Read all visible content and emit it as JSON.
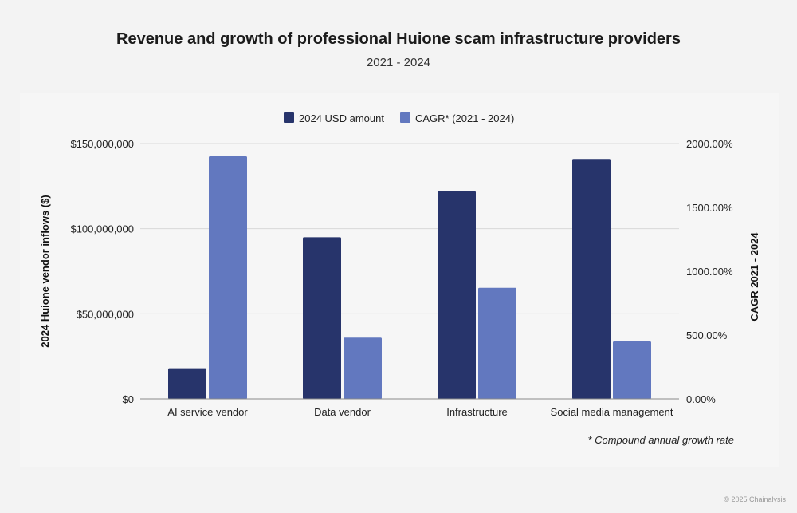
{
  "title": "Revenue and growth of professional Huione scam infrastructure providers",
  "subtitle": "2021 - 2024",
  "copyright": "© 2025 Chainalysis",
  "footnote": "* Compound annual growth rate",
  "colors": {
    "usd": "#27346b",
    "cagr": "#6278bf",
    "grid": "#d9d9d9",
    "axis": "#8a8a8a",
    "text": "#222222"
  },
  "chart_data": {
    "type": "bar",
    "categories": [
      "AI service vendor",
      "Data vendor",
      "Infrastructure",
      "Social media management"
    ],
    "series": [
      {
        "name": "2024 USD amount",
        "axis": "left",
        "values": [
          18000000,
          95000000,
          122000000,
          141000000
        ]
      },
      {
        "name": "CAGR* (2021 - 2024)",
        "axis": "right",
        "values": [
          1900,
          480,
          870,
          450
        ]
      }
    ],
    "ylabel_left": "2024 Huione vendor inflows ($)",
    "ylabel_right": "CAGR 2021 - 2024",
    "ylim_left": [
      0,
      150000000
    ],
    "ylim_right": [
      0,
      2000
    ],
    "yticks_left": [
      "$0",
      "$50,000,000",
      "$100,000,000",
      "$150,000,000"
    ],
    "yticks_right": [
      "0.00%",
      "500.00%",
      "1000.00%",
      "1500.00%",
      "2000.00%"
    ],
    "grid": true,
    "legend": "top-center"
  }
}
